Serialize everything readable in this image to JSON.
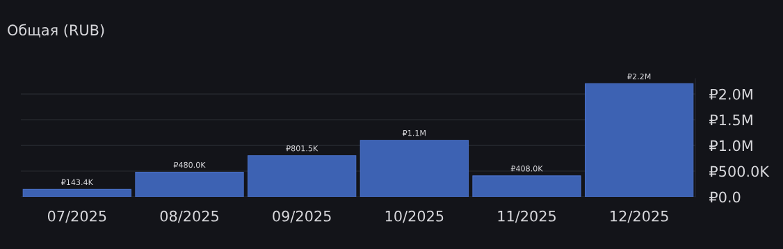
{
  "chart_data": {
    "type": "bar",
    "title": "Общая (RUB)",
    "categories": [
      "07/2025",
      "08/2025",
      "09/2025",
      "10/2025",
      "11/2025",
      "12/2025"
    ],
    "values": [
      143400,
      480000,
      801500,
      1100000,
      408000,
      2200000
    ],
    "value_labels": [
      "₽143.4K",
      "₽480.0K",
      "₽801.5K",
      "₽1.1M",
      "₽408.0K",
      "₽2.2M"
    ],
    "color": "#3d62b3",
    "ylim": [
      0,
      2300000
    ],
    "yticks": [
      {
        "value": 0,
        "label": "₽0.0"
      },
      {
        "value": 500000,
        "label": "₽500.0K"
      },
      {
        "value": 1000000,
        "label": "₽1.0M"
      },
      {
        "value": 1500000,
        "label": "₽1.5M"
      },
      {
        "value": 2000000,
        "label": "₽2.0M"
      }
    ],
    "grid": "y",
    "legend": false
  }
}
